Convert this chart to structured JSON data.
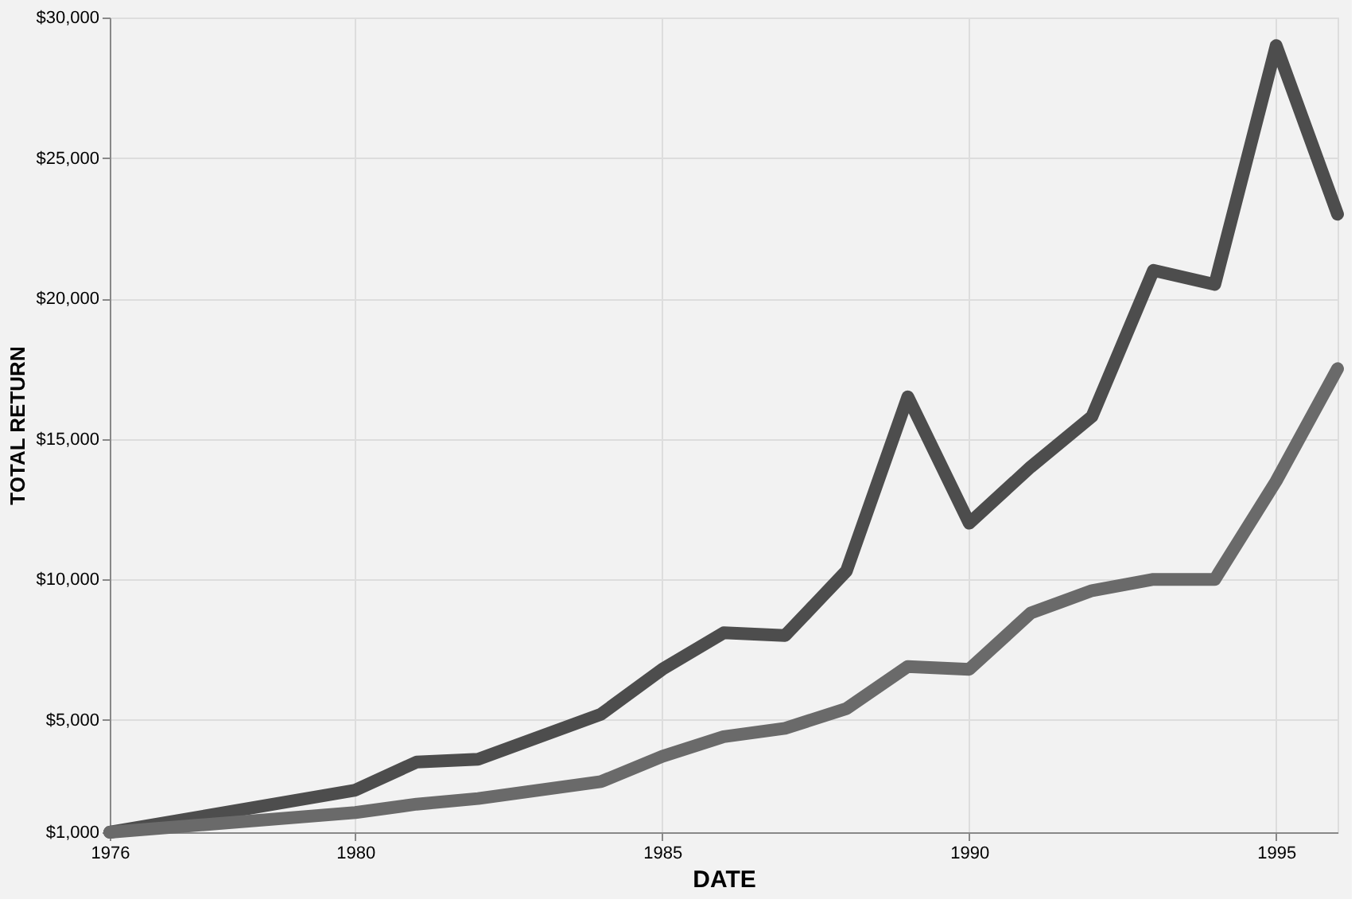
{
  "chart_data": {
    "type": "line",
    "xlabel": "DATE",
    "ylabel": "TOTAL RETURN",
    "x": [
      1976,
      1980,
      1981,
      1982,
      1984,
      1985,
      1986,
      1987,
      1988,
      1989,
      1990,
      1991,
      1992,
      1993,
      1994,
      1995,
      1996
    ],
    "series": [
      {
        "color": "#4d4d4d",
        "values": [
          1000,
          2500,
          3500,
          3600,
          5200,
          6800,
          8100,
          8000,
          10300,
          16500,
          12000,
          14000,
          15800,
          21000,
          20500,
          29000,
          23000
        ]
      },
      {
        "color": "#6a6a6a",
        "values": [
          1000,
          1700,
          2000,
          2200,
          2800,
          3700,
          4400,
          4700,
          5400,
          6900,
          6800,
          8800,
          9600,
          10000,
          10000,
          13500,
          17500
        ]
      }
    ],
    "xlim": [
      1976,
      1996
    ],
    "xticks": [
      1976,
      1980,
      1985,
      1990,
      1995
    ],
    "ylim": [
      1000,
      30000
    ],
    "yticks": [
      {
        "value": 1000,
        "label": "$1,000"
      },
      {
        "value": 5000,
        "label": "$5,000"
      },
      {
        "value": 10000,
        "label": "$10,000"
      },
      {
        "value": 15000,
        "label": "$15,000"
      },
      {
        "value": 20000,
        "label": "$20,000"
      },
      {
        "value": 25000,
        "label": "$25,000"
      },
      {
        "value": 30000,
        "label": "$30,000"
      }
    ],
    "grid": true,
    "legend": false,
    "marker": "none",
    "line_style": "solid"
  }
}
